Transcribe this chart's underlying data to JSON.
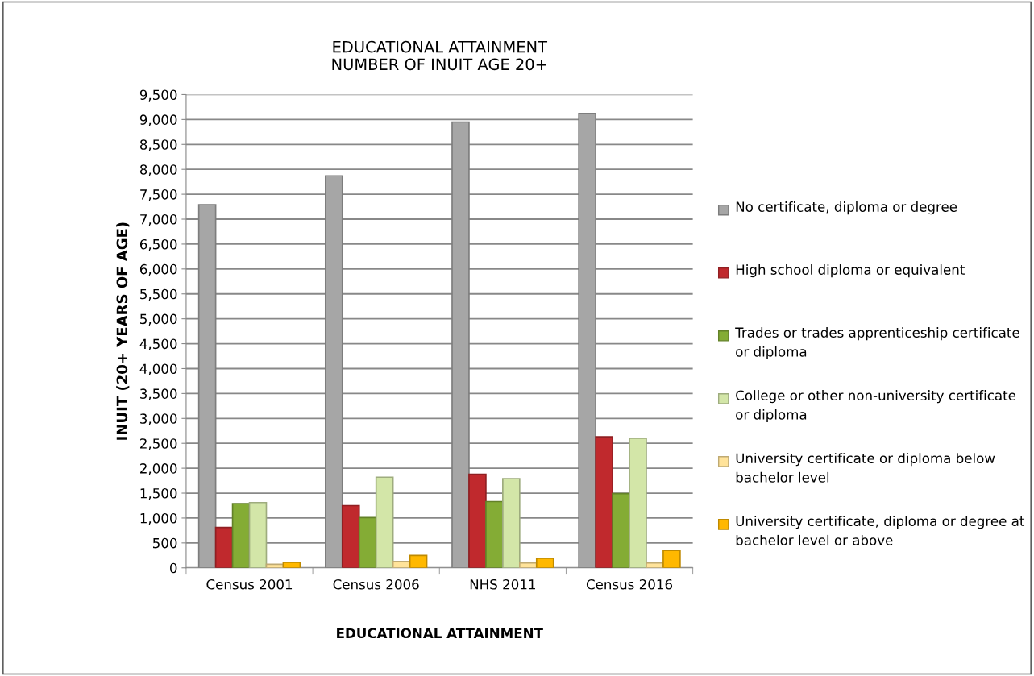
{
  "chart_data": {
    "type": "bar",
    "title": "EDUCATIONAL ATTAINMENT\nNUMBER OF INUIT AGE 20+",
    "xlabel": "EDUCATIONAL ATTAINMENT",
    "ylabel": "INUIT (20+ YEARS OF AGE)",
    "categories": [
      "Census 2001",
      "Census 2006",
      "NHS 2011",
      "Census 2016"
    ],
    "series": [
      {
        "name": "No certificate, diploma or degree",
        "color": "#a6a6a6",
        "values": [
          7290,
          7870,
          8950,
          9120
        ]
      },
      {
        "name": "High school diploma or equivalent",
        "color": "#c0292d",
        "values": [
          810,
          1250,
          1880,
          2630
        ]
      },
      {
        "name": "Trades or trades apprenticeship certificate or diploma",
        "color": "#84ac35",
        "values": [
          1290,
          1010,
          1330,
          1490
        ]
      },
      {
        "name": "College or other non-university certificate or diploma",
        "color": "#d3e6a8",
        "values": [
          1310,
          1820,
          1790,
          2600
        ]
      },
      {
        "name": "University certificate or diploma below bachelor level",
        "color": "#ffe39a",
        "values": [
          70,
          130,
          100,
          100
        ]
      },
      {
        "name": "University certificate, diploma or degree at bachelor level or above",
        "color": "#ffb800",
        "values": [
          110,
          250,
          190,
          350
        ]
      }
    ],
    "ylim": [
      0,
      9500
    ],
    "yticks": [
      {
        "value": 0,
        "label": "0"
      },
      {
        "value": 500,
        "label": "500"
      },
      {
        "value": 1000,
        "label": "1,000"
      },
      {
        "value": 1500,
        "label": "1,500"
      },
      {
        "value": 2000,
        "label": "2,000"
      },
      {
        "value": 2500,
        "label": "2,500"
      },
      {
        "value": 3000,
        "label": "3,000"
      },
      {
        "value": 3500,
        "label": "3,500"
      },
      {
        "value": 4000,
        "label": "4,000"
      },
      {
        "value": 4500,
        "label": "4,500"
      },
      {
        "value": 5000,
        "label": "5,000"
      },
      {
        "value": 5500,
        "label": "5,500"
      },
      {
        "value": 6000,
        "label": "6,000"
      },
      {
        "value": 6500,
        "label": "6,500"
      },
      {
        "value": 7000,
        "label": "7,000"
      },
      {
        "value": 7500,
        "label": "7,500"
      },
      {
        "value": 8000,
        "label": "8,000"
      },
      {
        "value": 8500,
        "label": "8,500"
      },
      {
        "value": 9000,
        "label": "9,000"
      },
      {
        "value": 9500,
        "label": "9,500"
      }
    ],
    "grid": "y",
    "legend": "right"
  }
}
